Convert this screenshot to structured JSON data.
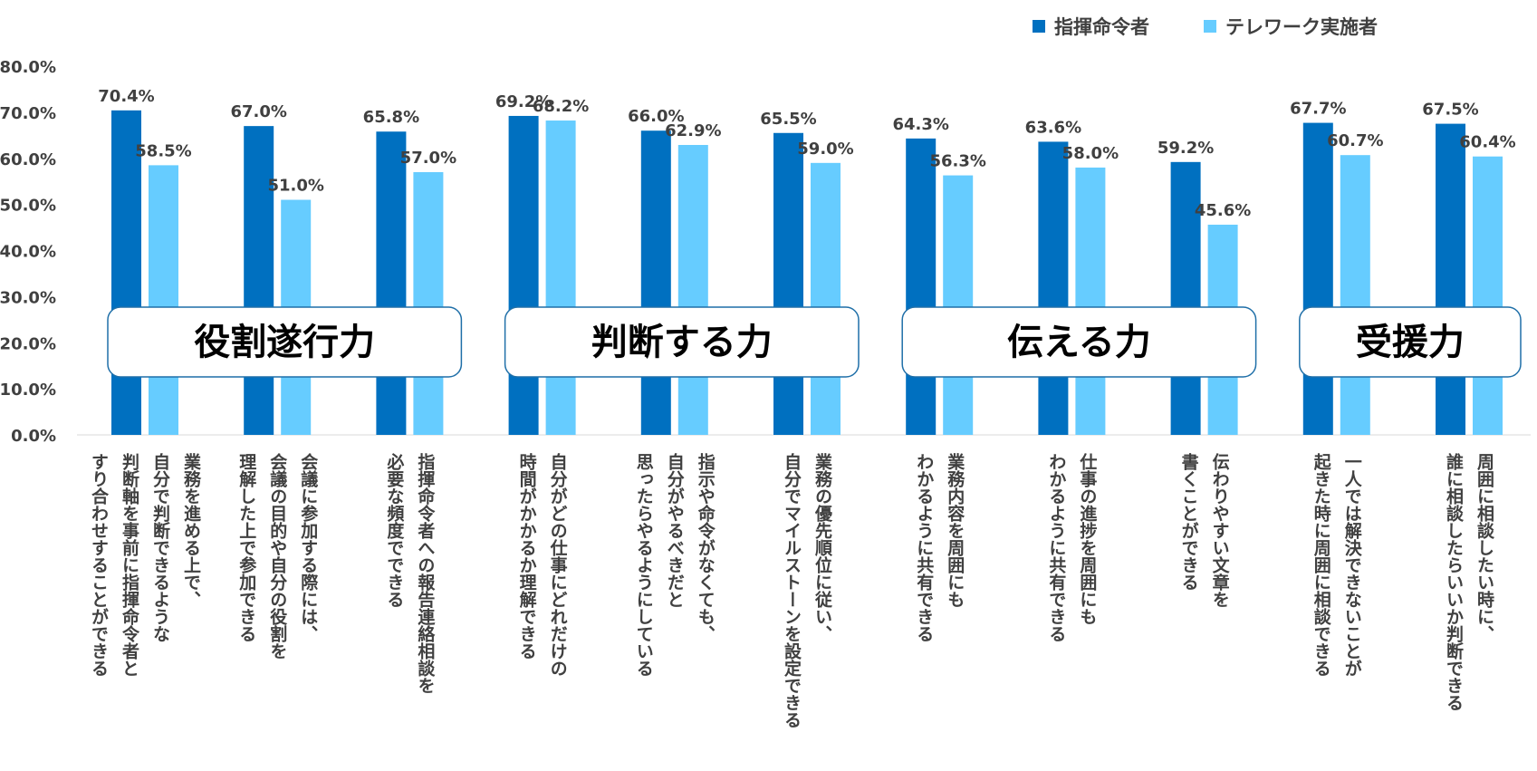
{
  "colors": {
    "series1": "#0070C0",
    "series2": "#66CCFF",
    "label": "#404040",
    "box_border": "#1F6FA8"
  },
  "chart_data": {
    "type": "bar",
    "ylim": [
      0,
      80
    ],
    "yticks": [
      "0.0%",
      "10.0%",
      "20.0%",
      "30.0%",
      "40.0%",
      "50.0%",
      "60.0%",
      "70.0%",
      "80.0%"
    ],
    "legend_position": "top-right",
    "grid": false,
    "series": [
      {
        "name": "指揮命令者",
        "values": [
          70.4,
          67.0,
          65.8,
          69.2,
          66.0,
          65.5,
          64.3,
          63.6,
          59.2,
          67.7,
          67.5
        ],
        "labels": [
          "70.4%",
          "67.0%",
          "65.8%",
          "69.2%",
          "66.0%",
          "65.5%",
          "64.3%",
          "63.6%",
          "59.2%",
          "67.7%",
          "67.5%"
        ]
      },
      {
        "name": "テレワーク実施者",
        "values": [
          58.5,
          51.0,
          57.0,
          68.2,
          62.9,
          59.0,
          56.3,
          58.0,
          45.6,
          60.7,
          60.4
        ],
        "labels": [
          "58.5%",
          "51.0%",
          "57.0%",
          "68.2%",
          "62.9%",
          "59.0%",
          "56.3%",
          "58.0%",
          "45.6%",
          "60.7%",
          "60.4%"
        ]
      }
    ],
    "categories": [
      [
        "業務を進める上で、",
        "自分で判断できるような",
        "判断軸を事前に指揮命令者と",
        "すり合わせすることができる"
      ],
      [
        "会議に参加する際には、",
        "会議の目的や自分の役割を",
        "理解した上で参加できる"
      ],
      [
        "指揮命令者への報告連絡相談を",
        "必要な頻度でできる"
      ],
      [
        "自分がどの仕事にどれだけの",
        "時間がかかるか理解できる"
      ],
      [
        "指示や命令がなくても、",
        "自分がやるべきだと",
        "思ったらやるようにしている"
      ],
      [
        "業務の優先順位に従い、",
        "自分でマイルストーンを設定できる"
      ],
      [
        "業務内容を周囲にも",
        "わかるように共有できる"
      ],
      [
        "仕事の進捗を周囲にも",
        "わかるように共有できる"
      ],
      [
        "伝わりやすい文章を",
        "書くことができる"
      ],
      [
        "一人では解決できないことが",
        "起きた時に周囲に相談できる"
      ],
      [
        "周囲に相談したい時に、",
        "誰に相談したらいいか判断できる"
      ]
    ],
    "groups": [
      {
        "label": "役割遂行力",
        "from": 0,
        "to": 2
      },
      {
        "label": "判断する力",
        "from": 3,
        "to": 5
      },
      {
        "label": "伝える力",
        "from": 6,
        "to": 8
      },
      {
        "label": "受援力",
        "from": 9,
        "to": 10
      }
    ]
  }
}
